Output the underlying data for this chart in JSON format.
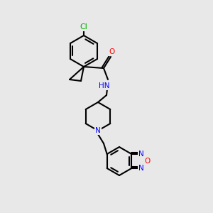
{
  "background_color": "#e8e8e8",
  "bond_color": "#000000",
  "bond_width": 1.5,
  "atom_colors": {
    "C": "#000000",
    "N": "#0000ff",
    "O": "#ff0000",
    "Cl": "#00aa00",
    "H": "#4aa0a0"
  },
  "font_size": 7.5
}
